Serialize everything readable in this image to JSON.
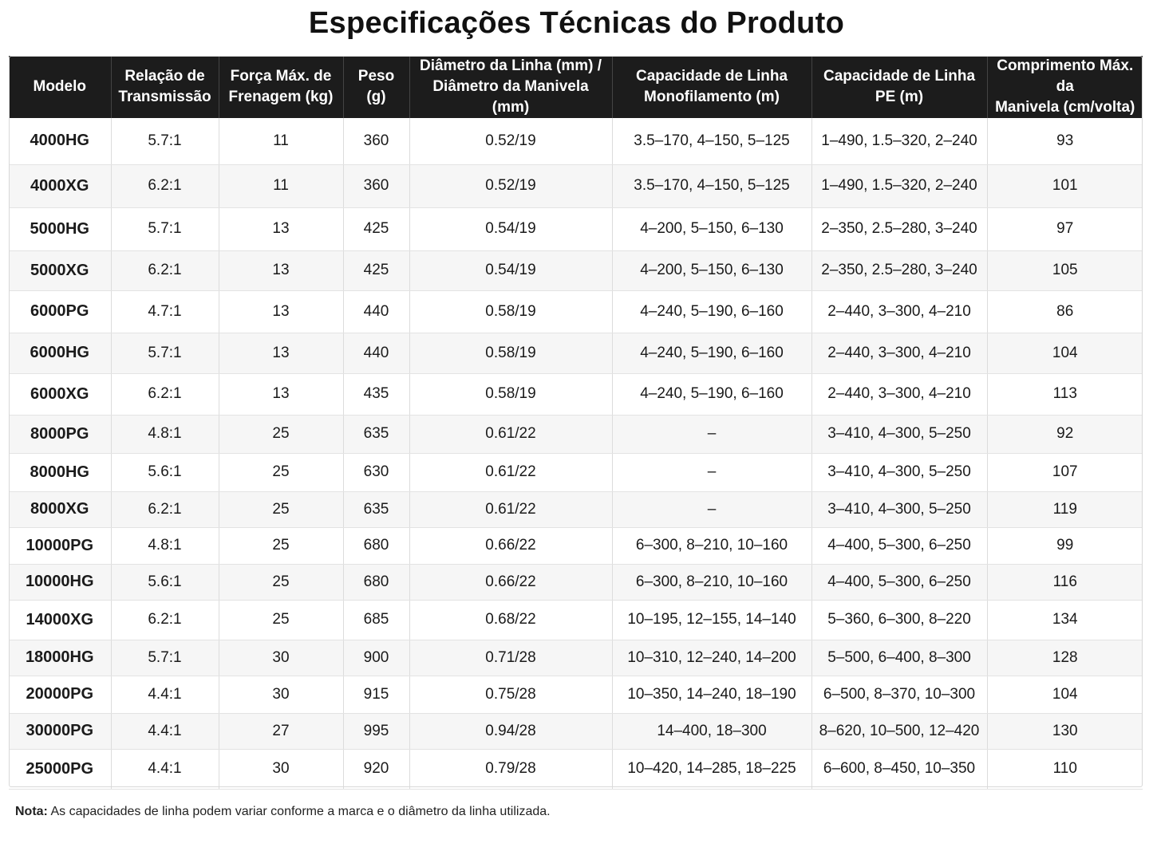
{
  "title": "Especificações Técnicas do Produto",
  "table": {
    "headers": [
      "Modelo",
      "Relação de\nTransmissão",
      "Força Máx. de\nFrenagem (kg)",
      "Peso\n(g)",
      "Diâmetro da Linha (mm) /\nDiâmetro da Manivela (mm)",
      "Capacidade de Linha\nMonofilamento (m)",
      "Capacidade de Linha\nPE (m)",
      "Comprimento Máx. da\nManivela (cm/volta)"
    ],
    "rows": [
      [
        "4000HG",
        "5.7:1",
        "11",
        "360",
        "0.52/19",
        "3.5–170, 4–150, 5–125",
        "1–490, 1.5–320, 2–240",
        "93"
      ],
      [
        "4000XG",
        "6.2:1",
        "11",
        "360",
        "0.52/19",
        "3.5–170, 4–150, 5–125",
        "1–490, 1.5–320, 2–240",
        "101"
      ],
      [
        "5000HG",
        "5.7:1",
        "13",
        "425",
        "0.54/19",
        "4–200, 5–150, 6–130",
        "2–350, 2.5–280, 3–240",
        "97"
      ],
      [
        "5000XG",
        "6.2:1",
        "13",
        "425",
        "0.54/19",
        "4–200, 5–150, 6–130",
        "2–350, 2.5–280, 3–240",
        "105"
      ],
      [
        "6000PG",
        "4.7:1",
        "13",
        "440",
        "0.58/19",
        "4–240, 5–190, 6–160",
        "2–440, 3–300, 4–210",
        "86"
      ],
      [
        "6000HG",
        "5.7:1",
        "13",
        "440",
        "0.58/19",
        "4–240, 5–190, 6–160",
        "2–440, 3–300, 4–210",
        "104"
      ],
      [
        "6000XG",
        "6.2:1",
        "13",
        "435",
        "0.58/19",
        "4–240, 5–190, 6–160",
        "2–440, 3–300, 4–210",
        "113"
      ],
      [
        "8000PG",
        "4.8:1",
        "25",
        "635",
        "0.61/22",
        "–",
        "3–410, 4–300, 5–250",
        "92"
      ],
      [
        "8000HG",
        "5.6:1",
        "25",
        "630",
        "0.61/22",
        "–",
        "3–410, 4–300, 5–250",
        "107"
      ],
      [
        "8000XG",
        "6.2:1",
        "25",
        "635",
        "0.61/22",
        "–",
        "3–410, 4–300, 5–250",
        "119"
      ],
      [
        "10000PG",
        "4.8:1",
        "25",
        "680",
        "0.66/22",
        "6–300, 8–210, 10–160",
        "4–400, 5–300, 6–250",
        "99"
      ],
      [
        "10000HG",
        "5.6:1",
        "25",
        "680",
        "0.66/22",
        "6–300, 8–210, 10–160",
        "4–400, 5–300, 6–250",
        "116"
      ],
      [
        "14000XG",
        "6.2:1",
        "25",
        "685",
        "0.68/22",
        "10–195, 12–155, 14–140",
        "5–360, 6–300, 8–220",
        "134"
      ],
      [
        "18000HG",
        "5.7:1",
        "30",
        "900",
        "0.71/28",
        "10–310, 12–240, 14–200",
        "5–500, 6–400, 8–300",
        "128"
      ],
      [
        "20000PG",
        "4.4:1",
        "30",
        "915",
        "0.75/28",
        "10–350, 14–240, 18–190",
        "6–500, 8–370, 10–300",
        "104"
      ],
      [
        "30000PG",
        "4.4:1",
        "27",
        "995",
        "0.94/28",
        "14–400, 18–300",
        "8–620, 10–500, 12–420",
        "130"
      ],
      [
        "25000PG",
        "4.4:1",
        "30",
        "920",
        "0.79/28",
        "10–420, 14–285, 18–225",
        "6–600, 8–450, 10–350",
        "110"
      ]
    ]
  },
  "note": {
    "label": "Nota:",
    "text": "As capacidades de linha podem variar conforme a marca e o diâmetro da linha utilizada."
  }
}
